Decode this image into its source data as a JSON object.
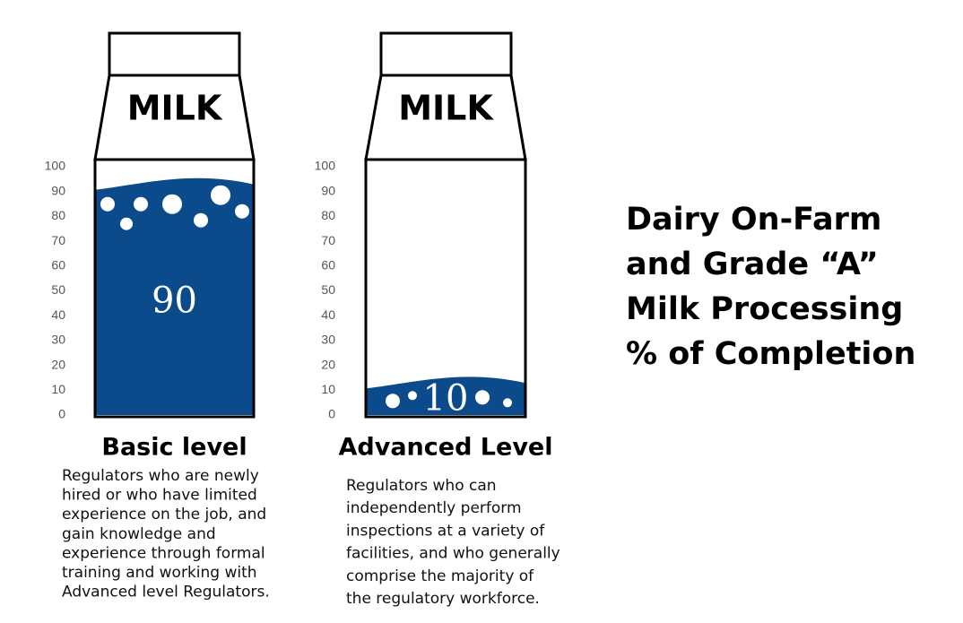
{
  "chart_data": {
    "type": "bar",
    "title": [
      "Dairy On-Farm",
      "and Grade “A”",
      "Milk Processing",
      "% of Completion"
    ],
    "carton_label": "MILK",
    "categories": [
      "Basic level",
      "Advanced Level"
    ],
    "values": [
      90,
      10
    ],
    "color": "#0b4a8b",
    "ylim": [
      0,
      100
    ],
    "yticks": [
      0,
      10,
      20,
      30,
      40,
      50,
      60,
      70,
      80,
      90,
      100
    ],
    "descriptions": [
      [
        "Regulators who are newly",
        "hired or who have limited",
        "experience on the job, and",
        "gain knowledge and",
        "experience through formal",
        "training and working with",
        "Advanced level Regulators."
      ],
      [
        "Regulators who can",
        "independently perform",
        "inspections at a variety of",
        "facilities, and who generally",
        "comprise the majority of",
        "the regulatory workforce."
      ]
    ]
  }
}
